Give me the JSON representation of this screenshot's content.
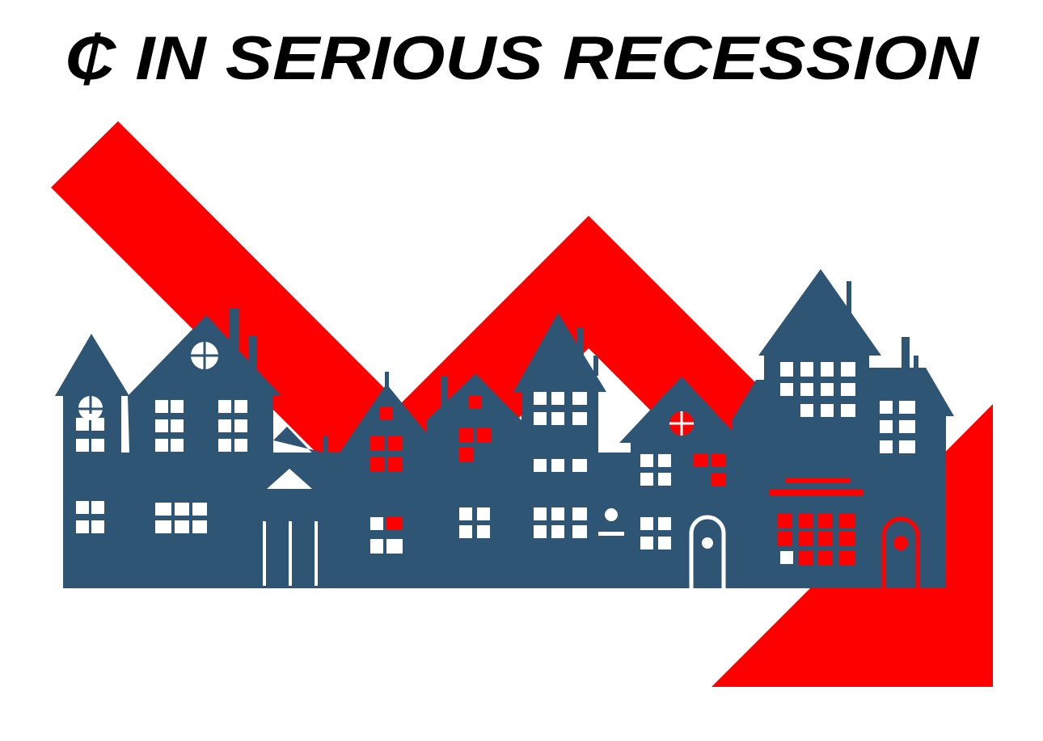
{
  "title": "₵ IN SERIOUS RECESSION"
}
